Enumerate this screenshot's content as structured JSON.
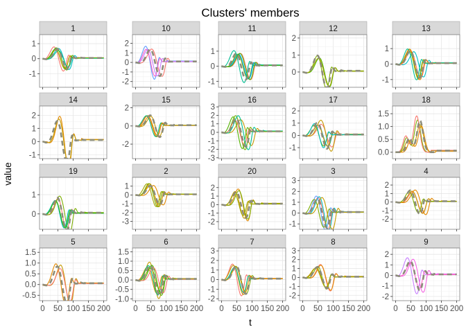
{
  "chart_data": {
    "type": "line",
    "title": "Clusters' members",
    "xlabel": "t",
    "ylabel": "value",
    "x_ticks": [
      "0",
      "50",
      "100",
      "150",
      "200"
    ],
    "x_range": [
      -10,
      210
    ],
    "grid": true,
    "facet_layout": "5 columns x 4 rows",
    "dashed_centroid_color": "#8c8c7a",
    "panels": [
      {
        "label": "1",
        "ylim": [
          -1.9,
          1.6
        ],
        "yticks": [
          "-1",
          "0",
          "1"
        ],
        "series_colors": [
          "#00bfc4",
          "#7cae00",
          "#f8766d",
          "#c49a00",
          "#00c094",
          "#53b400"
        ],
        "amp": 1.0
      },
      {
        "label": "10",
        "ylim": [
          -2.6,
          2.9
        ],
        "yticks": [
          "-2",
          "-1",
          "0",
          "1",
          "2"
        ],
        "series_colors": [
          "#f8766d",
          "#619cff",
          "#ff61c3",
          "#c77cff"
        ],
        "amp": 2.1
      },
      {
        "label": "11",
        "ylim": [
          -1.4,
          2.1
        ],
        "yticks": [
          "-1",
          "0",
          "1"
        ],
        "series_colors": [
          "#00bfc4",
          "#f8766d",
          "#7cae00",
          "#00a9ff",
          "#00c094",
          "#53b400"
        ],
        "amp": 1.3
      },
      {
        "label": "12",
        "ylim": [
          -0.9,
          2.2
        ],
        "yticks": [
          "0",
          "1",
          "2"
        ],
        "series_colors": [
          "#7cae00",
          "#53b400",
          "#a3a500"
        ],
        "amp": 1.5
      },
      {
        "label": "13",
        "ylim": [
          -1.5,
          1.9
        ],
        "yticks": [
          "-1",
          "0",
          "1"
        ],
        "series_colors": [
          "#c49a00",
          "#00bfc4",
          "#7cae00",
          "#f8766d",
          "#e38900",
          "#00c094"
        ],
        "amp": 1.3
      },
      {
        "label": "14",
        "ylim": [
          -1.3,
          2.7
        ],
        "yticks": [
          "-1",
          "0",
          "1",
          "2"
        ],
        "series_colors": [
          "#e38900",
          "#c49a00"
        ],
        "amp": 2.4
      },
      {
        "label": "15",
        "ylim": [
          -3.6,
          2.2
        ],
        "yticks": [
          "-2",
          "0",
          "2"
        ],
        "series_colors": [
          "#f8766d",
          "#e38900",
          "#c49a00",
          "#00bf7d",
          "#d89000"
        ],
        "amp": 1.8
      },
      {
        "label": "16",
        "ylim": [
          -3.1,
          3.1
        ],
        "yticks": [
          "-3",
          "-2",
          "-1",
          "0",
          "1",
          "2",
          "3"
        ],
        "series_colors": [
          "#7cae00",
          "#f8766d",
          "#c49a00",
          "#53b400",
          "#00c094"
        ],
        "amp": 2.5
      },
      {
        "label": "17",
        "ylim": [
          -1.9,
          2.4
        ],
        "yticks": [
          "-1",
          "0",
          "1",
          "2"
        ],
        "series_colors": [
          "#f8766d",
          "#7cae00",
          "#c49a00",
          "#00c094",
          "#e38900",
          "#00bfc4"
        ],
        "amp": 1.6
      },
      {
        "label": "18",
        "ylim": [
          -0.25,
          1.8
        ],
        "yticks": [
          "0.0",
          "0.5",
          "1.0",
          "1.5"
        ],
        "series_colors": [
          "#c49a00",
          "#e38900",
          "#7cae00",
          "#f8766d"
        ],
        "amp": 1.3,
        "positive": true
      },
      {
        "label": "19",
        "ylim": [
          -0.8,
          1.9
        ],
        "yticks": [
          "0",
          "1"
        ],
        "series_colors": [
          "#f8766d",
          "#7cae00",
          "#00bfc4",
          "#00c094",
          "#53b400"
        ],
        "amp": 1.3
      },
      {
        "label": "2",
        "ylim": [
          -3.9,
          2.0
        ],
        "yticks": [
          "-3",
          "-2",
          "-1",
          "0",
          "1"
        ],
        "series_colors": [
          "#c49a00",
          "#e38900",
          "#a3a500",
          "#d89000",
          "#7cae00"
        ],
        "amp": 1.6
      },
      {
        "label": "20",
        "ylim": [
          -2.9,
          3.2
        ],
        "yticks": [
          "-2",
          "-1",
          "0",
          "1",
          "2"
        ],
        "series_colors": [
          "#c49a00",
          "#e38900",
          "#7cae00",
          "#a3a500"
        ],
        "amp": 2.3
      },
      {
        "label": "3",
        "ylim": [
          -1.5,
          3.3
        ],
        "yticks": [
          "-1",
          "0",
          "1",
          "2",
          "3"
        ],
        "series_colors": [
          "#f8766d",
          "#00bfc4",
          "#619cff",
          "#7cae00",
          "#c49a00"
        ],
        "amp": 2.0
      },
      {
        "label": "4",
        "ylim": [
          -3.2,
          2.9
        ],
        "yticks": [
          "-2",
          "-1",
          "0",
          "1",
          "2"
        ],
        "series_colors": [
          "#f8766d",
          "#c49a00",
          "#e38900",
          "#7cae00"
        ],
        "amp": 2.1
      },
      {
        "label": "5",
        "ylim": [
          -0.75,
          1.7
        ],
        "yticks": [
          "-0.5",
          "0.0",
          "0.5",
          "1.0",
          "1.5"
        ],
        "series_colors": [
          "#e38900",
          "#c49a00",
          "#f8766d"
        ],
        "amp": 1.3
      },
      {
        "label": "6",
        "ylim": [
          -1.1,
          1.7
        ],
        "yticks": [
          "-1.0",
          "-0.5",
          "0.0",
          "0.5",
          "1.0",
          "1.5"
        ],
        "series_colors": [
          "#c49a00",
          "#e38900",
          "#00bf7d",
          "#7cae00",
          "#53b400",
          "#f8766d"
        ],
        "amp": 1.2
      },
      {
        "label": "7",
        "ylim": [
          -2.2,
          3.3
        ],
        "yticks": [
          "-2",
          "-1",
          "0",
          "1",
          "2",
          "3"
        ],
        "series_colors": [
          "#7cae00",
          "#f8766d",
          "#c49a00",
          "#00c094",
          "#e38900"
        ],
        "amp": 2.2
      },
      {
        "label": "8",
        "ylim": [
          -2.6,
          3.3
        ],
        "yticks": [
          "-2",
          "-1",
          "0",
          "1",
          "2",
          "3"
        ],
        "series_colors": [
          "#f8766d",
          "#e38900",
          "#c49a00",
          "#7cae00",
          "#a3a500"
        ],
        "amp": 1.8
      },
      {
        "label": "9",
        "ylim": [
          -2.4,
          2.6
        ],
        "yticks": [
          "-2",
          "-1",
          "0",
          "1",
          "2"
        ],
        "series_colors": [
          "#c77cff",
          "#f564e3",
          "#ff61c3"
        ],
        "amp": 2.1
      }
    ]
  }
}
